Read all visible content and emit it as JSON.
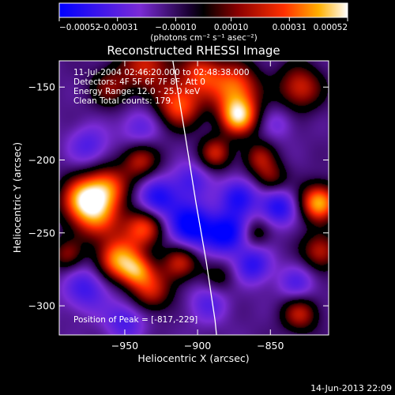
{
  "chart_data": {
    "type": "heatmap",
    "title": "Reconstructed RHESSI Image",
    "xlabel": "Heliocentric X (arcsec)",
    "ylabel": "Heliocentric Y (arcsec)",
    "xlim": [
      -995,
      -810
    ],
    "ylim": [
      -320,
      -132
    ],
    "x_ticks": [
      -950,
      -900,
      -850
    ],
    "x_tick_labels": [
      "−950",
      "−900",
      "−850"
    ],
    "y_ticks": [
      -300,
      -250,
      -200,
      -150
    ],
    "y_tick_labels": [
      "−300",
      "−250",
      "−200",
      "−150"
    ],
    "colorbar": {
      "range": [
        -0.00052,
        0.00052
      ],
      "ticks": [
        -0.00052,
        -0.00031,
        -0.0001,
        0.0001,
        0.00031,
        0.00052
      ],
      "tick_labels": [
        "−0.00052",
        "−0.00031",
        "−0.00010",
        "0.00010",
        "0.00031",
        "0.00052"
      ],
      "unit_label": "(photons cm⁻² s⁻¹ asec⁻²)",
      "colors": [
        "#0000ff",
        "#7a2bd6",
        "#1a0033",
        "#000000",
        "#8b0000",
        "#ff3000",
        "#ffb000",
        "#ffffff"
      ]
    },
    "annotations": [
      "11-Jul-2004 02:46:20.000 to 02:48:38.000",
      "Detectors: 4F 5F 6F 7F 8F, Att 0",
      "Energy Range: 12.0 - 25.0 keV",
      "Clean     Total counts: 179.",
      "Position of Peak = [-817,-229]"
    ],
    "peak": {
      "x": -817,
      "y": -229
    },
    "limb_curve": [
      {
        "x": -917,
        "y": -132
      },
      {
        "x": -909,
        "y": -180
      },
      {
        "x": -901,
        "y": -230
      },
      {
        "x": -894,
        "y": -270
      },
      {
        "x": -888,
        "y": -310
      },
      {
        "x": -887,
        "y": -320
      }
    ],
    "sources": [
      {
        "x": -978,
        "y": -227,
        "s": 0.00052,
        "r": 11
      },
      {
        "x": -962,
        "y": -218,
        "s": 0.00036,
        "r": 10
      },
      {
        "x": -940,
        "y": -200,
        "s": 0.0003,
        "r": 9
      },
      {
        "x": -968,
        "y": -240,
        "s": 0.0003,
        "r": 12
      },
      {
        "x": -937,
        "y": -246,
        "s": 0.0004,
        "r": 10
      },
      {
        "x": -955,
        "y": -268,
        "s": 0.00046,
        "r": 10
      },
      {
        "x": -942,
        "y": -276,
        "s": 0.00036,
        "r": 8
      },
      {
        "x": -932,
        "y": -290,
        "s": 0.0003,
        "r": 10
      },
      {
        "x": -912,
        "y": -270,
        "s": 0.00032,
        "r": 9
      },
      {
        "x": -935,
        "y": -135,
        "s": 0.00032,
        "r": 12
      },
      {
        "x": -960,
        "y": -150,
        "s": 0.00022,
        "r": 10
      },
      {
        "x": -913,
        "y": -162,
        "s": 0.0004,
        "r": 11
      },
      {
        "x": -898,
        "y": -140,
        "s": 0.00032,
        "r": 10
      },
      {
        "x": -875,
        "y": -150,
        "s": 0.00042,
        "r": 12
      },
      {
        "x": -872,
        "y": -170,
        "s": 0.00052,
        "r": 9
      },
      {
        "x": -830,
        "y": -150,
        "s": 0.00032,
        "r": 11
      },
      {
        "x": -888,
        "y": -195,
        "s": 0.0003,
        "r": 8
      },
      {
        "x": -858,
        "y": -198,
        "s": 0.00024,
        "r": 8
      },
      {
        "x": -850,
        "y": -212,
        "s": 0.00022,
        "r": 8
      },
      {
        "x": -817,
        "y": -229,
        "s": 0.00052,
        "r": 9
      },
      {
        "x": -816,
        "y": -262,
        "s": 0.0003,
        "r": 9
      },
      {
        "x": -830,
        "y": -305,
        "s": 0.0003,
        "r": 9
      },
      {
        "x": -860,
        "y": -250,
        "s": 0.00018,
        "r": 7
      },
      {
        "x": -885,
        "y": -280,
        "s": 0.00014,
        "r": 8
      },
      {
        "x": -990,
        "y": -265,
        "s": 0.00022,
        "r": 8
      },
      {
        "x": -905,
        "y": -245,
        "s": -0.00044,
        "r": 11
      },
      {
        "x": -928,
        "y": -227,
        "s": -0.00034,
        "r": 10
      },
      {
        "x": -880,
        "y": -250,
        "s": -0.0004,
        "r": 10
      },
      {
        "x": -872,
        "y": -225,
        "s": -0.00032,
        "r": 9
      },
      {
        "x": -862,
        "y": -272,
        "s": -0.00028,
        "r": 9
      },
      {
        "x": -845,
        "y": -232,
        "s": -0.00032,
        "r": 9
      },
      {
        "x": -905,
        "y": -214,
        "s": -0.00022,
        "r": 9
      },
      {
        "x": -893,
        "y": -298,
        "s": -0.00018,
        "r": 10
      },
      {
        "x": -940,
        "y": -178,
        "s": -0.00018,
        "r": 10
      },
      {
        "x": -977,
        "y": -288,
        "s": -0.00024,
        "r": 11
      },
      {
        "x": -975,
        "y": -190,
        "s": -0.0002,
        "r": 10
      },
      {
        "x": -845,
        "y": -175,
        "s": -0.00012,
        "r": 8
      },
      {
        "x": -832,
        "y": -285,
        "s": -0.0002,
        "r": 9
      },
      {
        "x": -950,
        "y": -310,
        "s": -0.00022,
        "r": 10
      }
    ]
  },
  "footer": {
    "date": "14-Jun-2013 22:09"
  }
}
